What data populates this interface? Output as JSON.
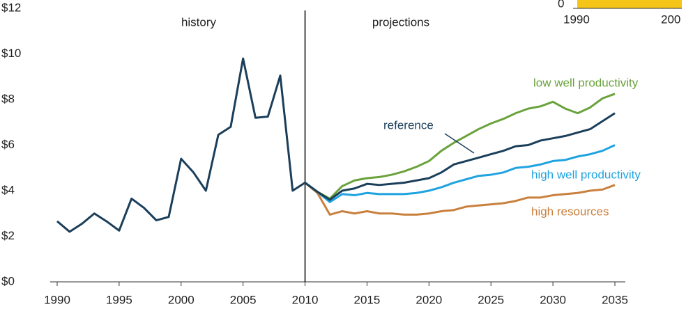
{
  "chart_data": {
    "type": "line",
    "x": [
      1990,
      1991,
      1992,
      1993,
      1994,
      1995,
      1996,
      1997,
      1998,
      1999,
      2000,
      2001,
      2002,
      2003,
      2004,
      2005,
      2006,
      2007,
      2008,
      2009,
      2010,
      2011,
      2012,
      2013,
      2014,
      2015,
      2016,
      2017,
      2018,
      2019,
      2020,
      2021,
      2022,
      2023,
      2024,
      2025,
      2026,
      2027,
      2028,
      2029,
      2030,
      2031,
      2032,
      2033,
      2034,
      2035
    ],
    "series": [
      {
        "color": "#1b3f5a",
        "values": [
          2.66,
          2.2,
          2.55,
          3.0,
          2.65,
          2.25,
          3.65,
          3.25,
          2.7,
          2.85,
          5.4,
          4.8,
          4.0,
          6.45,
          6.8,
          9.8,
          7.2,
          7.25,
          9.05,
          4.0,
          4.35,
          null,
          null,
          null,
          null,
          null,
          null,
          null,
          null,
          null,
          null,
          null,
          null,
          null,
          null,
          null,
          null,
          null,
          null,
          null,
          null,
          null,
          null,
          null,
          null,
          null
        ]
      },
      {
        "name": "high resources",
        "color": "#c9803e",
        "values": [
          null,
          null,
          null,
          null,
          null,
          null,
          null,
          null,
          null,
          null,
          null,
          null,
          null,
          null,
          null,
          null,
          null,
          null,
          null,
          null,
          4.35,
          3.9,
          2.95,
          3.1,
          3.0,
          3.1,
          3.0,
          3.0,
          2.95,
          2.95,
          3.0,
          3.1,
          3.15,
          3.3,
          3.35,
          3.4,
          3.45,
          3.55,
          3.7,
          3.7,
          3.8,
          3.85,
          3.9,
          4.0,
          4.05,
          4.25
        ]
      },
      {
        "name": "high well productivity",
        "color": "#1fa3e0",
        "values": [
          null,
          null,
          null,
          null,
          null,
          null,
          null,
          null,
          null,
          null,
          null,
          null,
          null,
          null,
          null,
          null,
          null,
          null,
          null,
          null,
          4.35,
          3.95,
          3.5,
          3.85,
          3.8,
          3.9,
          3.85,
          3.85,
          3.85,
          3.9,
          4.0,
          4.15,
          4.35,
          4.5,
          4.65,
          4.7,
          4.8,
          5.0,
          5.05,
          5.15,
          5.3,
          5.35,
          5.5,
          5.6,
          5.75,
          6.0
        ]
      },
      {
        "name": "low well productivity",
        "color": "#6aa23c",
        "values": [
          null,
          null,
          null,
          null,
          null,
          null,
          null,
          null,
          null,
          null,
          null,
          null,
          null,
          null,
          null,
          null,
          null,
          null,
          null,
          null,
          4.35,
          3.95,
          3.65,
          4.2,
          4.45,
          4.55,
          4.6,
          4.7,
          4.85,
          5.05,
          5.3,
          5.75,
          6.1,
          6.4,
          6.7,
          6.95,
          7.15,
          7.4,
          7.6,
          7.7,
          7.9,
          7.6,
          7.4,
          7.65,
          8.05,
          8.25
        ]
      },
      {
        "name": "reference",
        "color": "#1b3f5a",
        "values": [
          null,
          null,
          null,
          null,
          null,
          null,
          null,
          null,
          null,
          null,
          null,
          null,
          null,
          null,
          null,
          null,
          null,
          null,
          null,
          null,
          4.35,
          3.95,
          3.6,
          4.0,
          4.1,
          4.3,
          4.25,
          4.3,
          4.35,
          4.45,
          4.55,
          4.8,
          5.15,
          5.3,
          5.45,
          5.6,
          5.75,
          5.95,
          6.0,
          6.2,
          6.3,
          6.4,
          6.55,
          6.7,
          7.05,
          7.4
        ]
      }
    ],
    "annotations": [
      "history",
      "projections"
    ],
    "divider": 2010,
    "xlim": [
      1990,
      2035
    ],
    "xticks": [
      1990,
      1995,
      2000,
      2005,
      2010,
      2015,
      2020,
      2025,
      2030,
      2035
    ],
    "ylim": [
      0,
      12
    ],
    "yticks": [
      {
        "value": 0,
        "label": "$0"
      },
      {
        "value": 2,
        "label": "$2"
      },
      {
        "value": 4,
        "label": "$4"
      },
      {
        "value": 6,
        "label": "$6"
      },
      {
        "value": 8,
        "label": "$8"
      },
      {
        "value": 10,
        "label": "$10"
      },
      {
        "value": 12,
        "label": "$12"
      }
    ],
    "grid": false
  },
  "inset": {
    "ytick": "0",
    "xticks": [
      "1990",
      "200"
    ]
  }
}
